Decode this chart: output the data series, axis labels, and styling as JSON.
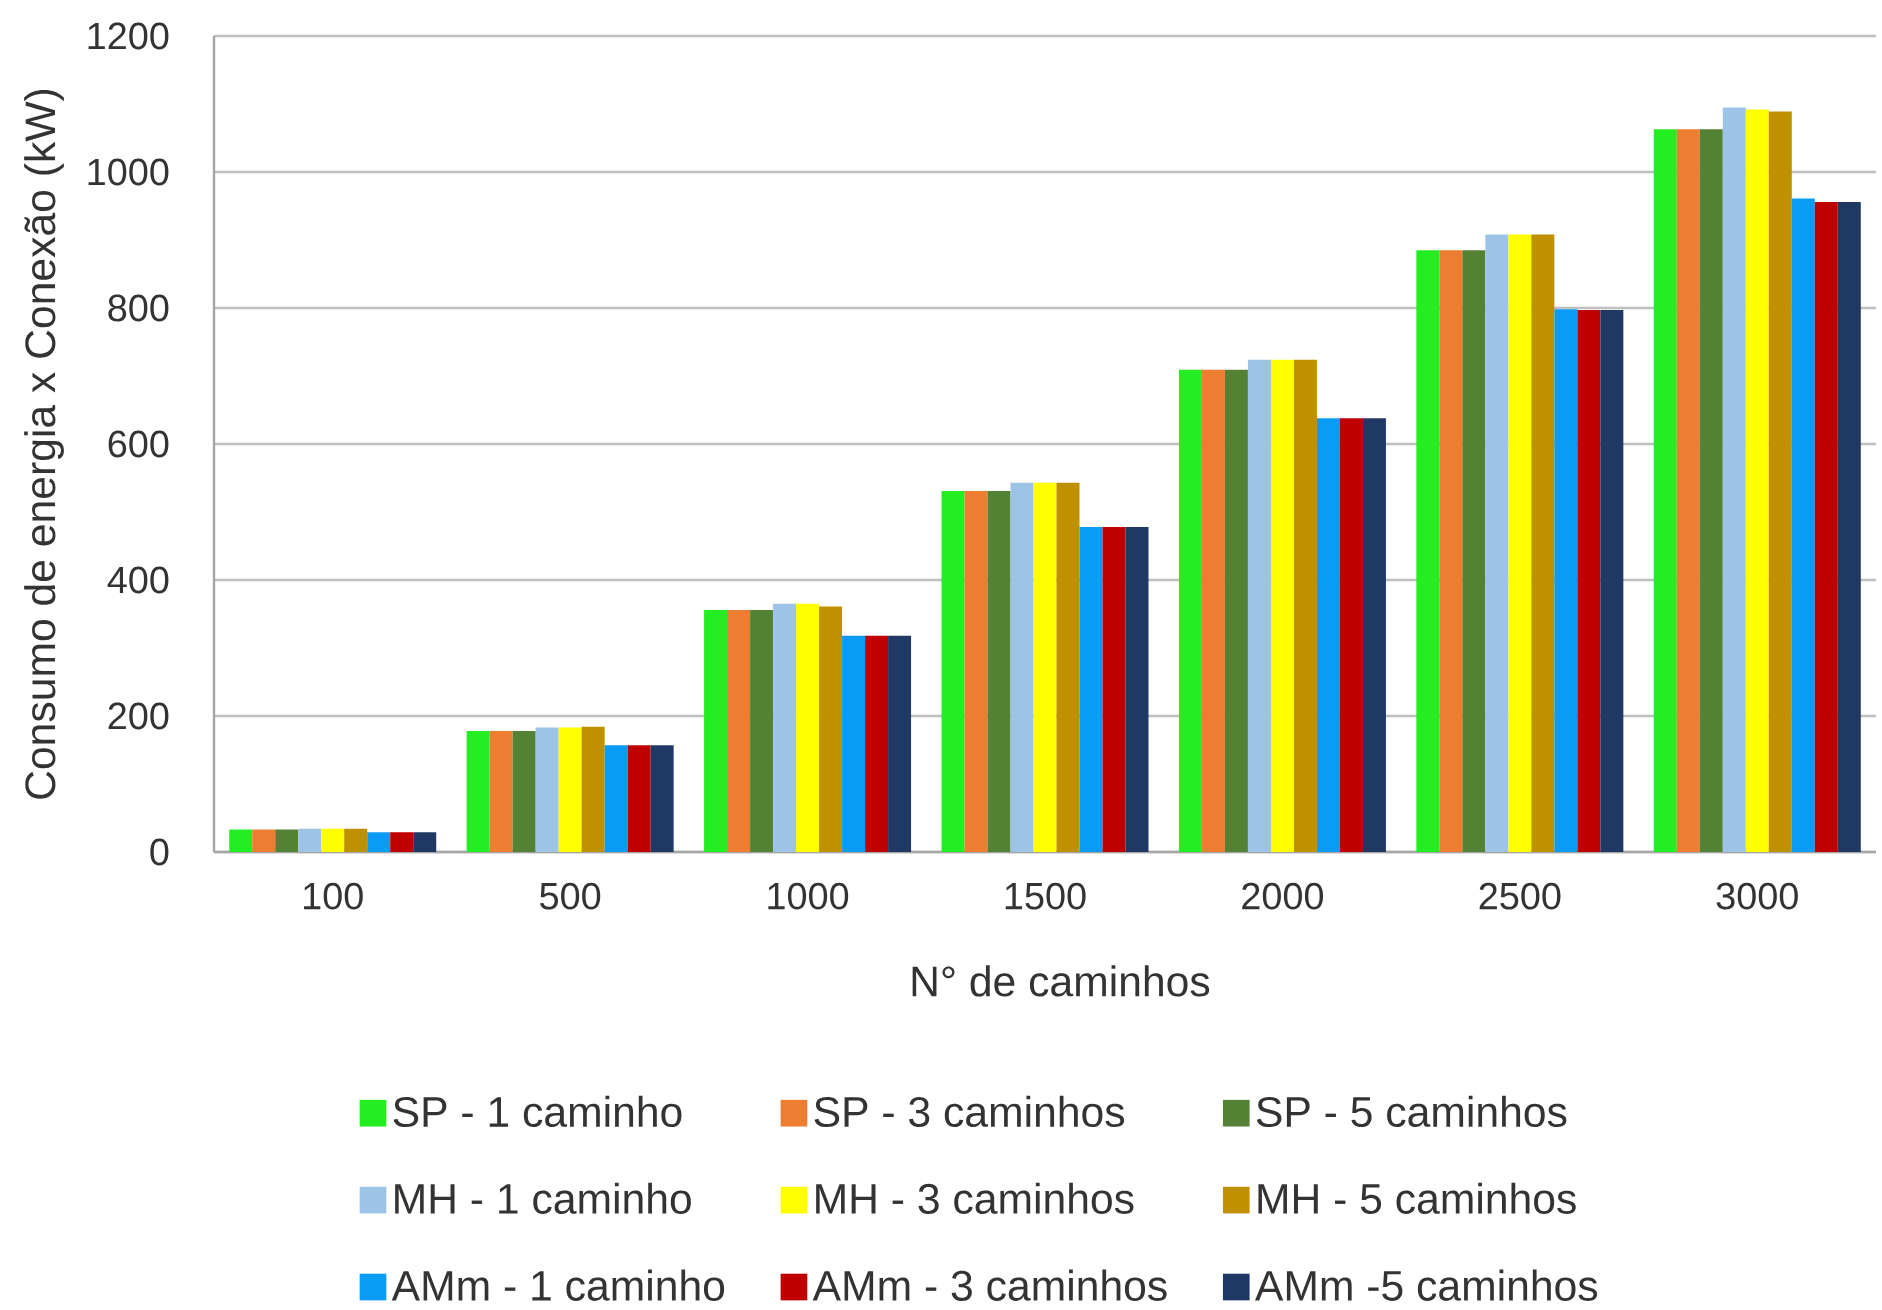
{
  "chart_data": {
    "type": "bar",
    "xlabel": "N° de caminhos",
    "ylabel": "Consumo de energia x Conexão (kW)",
    "categories": [
      "100",
      "500",
      "1000",
      "1500",
      "2000",
      "2500",
      "3000"
    ],
    "series": [
      {
        "name": "SP - 1 caminho",
        "color": "#22ee22",
        "values": [
          33,
          178,
          356,
          531,
          709,
          885,
          1063
        ]
      },
      {
        "name": "SP - 3 caminhos",
        "color": "#ed7d31",
        "values": [
          33,
          178,
          356,
          531,
          709,
          885,
          1063
        ]
      },
      {
        "name": "SP - 5 caminhos",
        "color": "#548235",
        "values": [
          33,
          178,
          356,
          531,
          709,
          885,
          1063
        ]
      },
      {
        "name": "MH - 1 caminho",
        "color": "#9dc3e6",
        "values": [
          34,
          183,
          365,
          543,
          724,
          908,
          1095
        ]
      },
      {
        "name": "MH - 3 caminhos",
        "color": "#ffff00",
        "values": [
          34,
          183,
          365,
          543,
          724,
          908,
          1092
        ]
      },
      {
        "name": "MH - 5 caminhos",
        "color": "#bf9000",
        "values": [
          34,
          184,
          361,
          543,
          724,
          908,
          1089
        ]
      },
      {
        "name": "AMm - 1 caminho",
        "color": "#0a9bf5",
        "values": [
          29,
          157,
          318,
          478,
          638,
          798,
          961
        ]
      },
      {
        "name": "AMm - 3 caminhos",
        "color": "#c00000",
        "values": [
          29,
          157,
          318,
          478,
          638,
          797,
          956
        ]
      },
      {
        "name": "AMm -5 caminhos",
        "color": "#203864",
        "values": [
          29,
          157,
          318,
          478,
          638,
          797,
          956
        ]
      }
    ],
    "ylim": [
      0,
      1200
    ],
    "yticks": [
      0,
      200,
      400,
      600,
      800,
      1000,
      1200
    ],
    "grid": "y",
    "legend": "bottom"
  }
}
